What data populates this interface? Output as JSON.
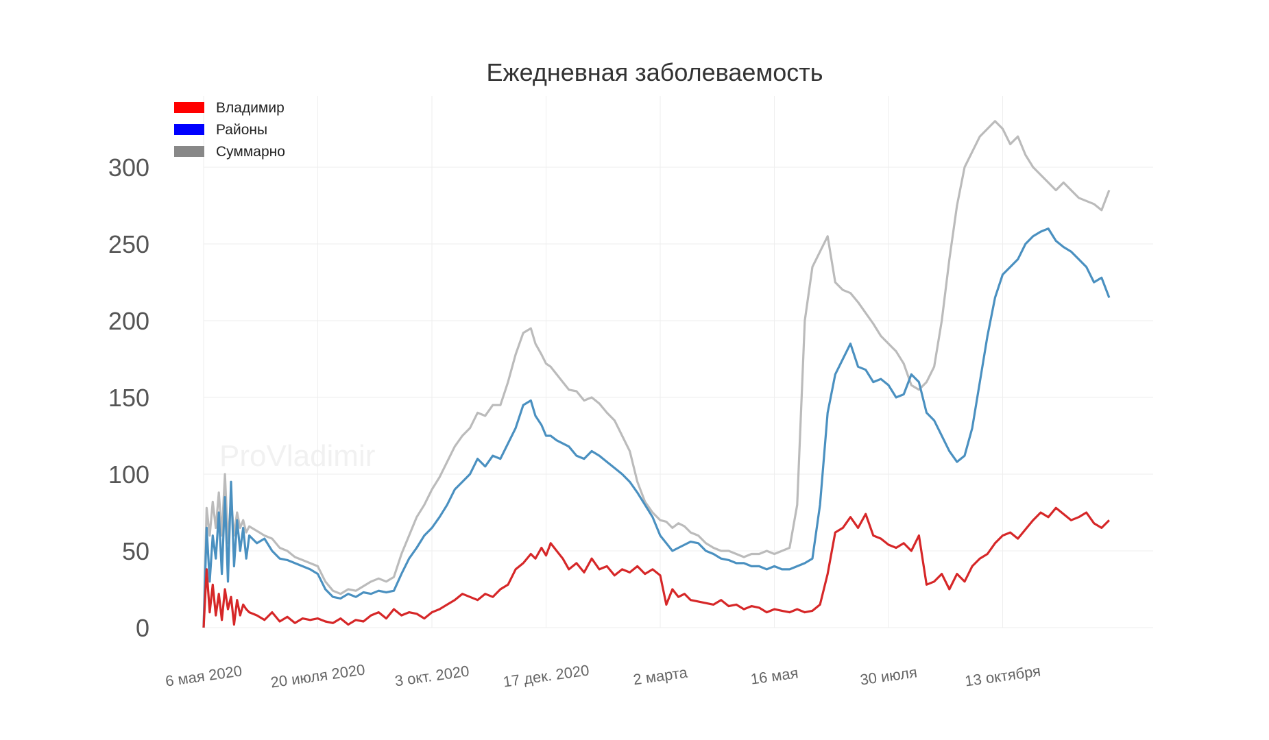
{
  "watermark": "ProVladimir",
  "chart_data": {
    "type": "line",
    "title": "Ежедневная заболеваемость",
    "xlabel": "",
    "ylabel": "",
    "ylim": [
      0,
      330
    ],
    "yticks": [
      0,
      50,
      100,
      150,
      200,
      250,
      300
    ],
    "x_tick_labels": [
      "6 мая 2020",
      "20 июля 2020",
      "3 окт. 2020",
      "17 дек. 2020",
      "2 марта",
      "16 мая",
      "30 июля",
      "13 октября"
    ],
    "x_tick_days": [
      0,
      75,
      150,
      225,
      300,
      375,
      450,
      525
    ],
    "x_range_days": [
      0,
      595
    ],
    "grid": true,
    "legend_position": "top-left",
    "series": [
      {
        "name": "Владимир",
        "color": "#d62728",
        "legend_color": "#ff0000",
        "x_days": [
          0,
          2,
          4,
          6,
          8,
          10,
          12,
          14,
          16,
          18,
          20,
          22,
          24,
          26,
          28,
          30,
          35,
          40,
          45,
          50,
          55,
          60,
          65,
          70,
          75,
          80,
          85,
          90,
          95,
          100,
          105,
          110,
          115,
          120,
          125,
          130,
          135,
          140,
          145,
          150,
          155,
          160,
          165,
          170,
          175,
          180,
          185,
          190,
          195,
          200,
          205,
          210,
          215,
          218,
          222,
          225,
          228,
          232,
          236,
          240,
          245,
          250,
          255,
          260,
          265,
          270,
          275,
          280,
          285,
          290,
          295,
          300,
          304,
          308,
          312,
          316,
          320,
          325,
          330,
          335,
          340,
          345,
          350,
          355,
          360,
          365,
          370,
          375,
          380,
          385,
          390,
          395,
          400,
          405,
          410,
          415,
          420,
          425,
          430,
          435,
          440,
          445,
          450,
          455,
          460,
          465,
          470,
          475,
          480,
          485,
          490,
          495,
          500,
          505,
          510,
          515,
          520,
          525,
          530,
          535,
          540,
          545,
          550,
          555,
          560,
          565,
          570,
          575,
          580,
          585,
          590,
          595
        ],
        "values": [
          0,
          38,
          10,
          28,
          8,
          22,
          5,
          25,
          12,
          20,
          2,
          18,
          8,
          15,
          12,
          10,
          8,
          5,
          10,
          4,
          7,
          3,
          6,
          5,
          6,
          4,
          3,
          6,
          2,
          5,
          4,
          8,
          10,
          6,
          12,
          8,
          10,
          9,
          6,
          10,
          12,
          15,
          18,
          22,
          20,
          18,
          22,
          20,
          25,
          28,
          38,
          42,
          48,
          45,
          52,
          47,
          55,
          50,
          45,
          38,
          42,
          36,
          45,
          38,
          40,
          34,
          38,
          36,
          40,
          35,
          38,
          34,
          15,
          25,
          20,
          22,
          18,
          17,
          16,
          15,
          18,
          14,
          15,
          12,
          14,
          13,
          10,
          12,
          11,
          10,
          12,
          10,
          11,
          15,
          35,
          62,
          65,
          72,
          65,
          74,
          60,
          58,
          54,
          52,
          55,
          50,
          60,
          28,
          30,
          35,
          25,
          35,
          30,
          40,
          45,
          48,
          55,
          60,
          62,
          58,
          64,
          70,
          75,
          72,
          78,
          74,
          70,
          72,
          75,
          68,
          65,
          70
        ]
      },
      {
        "name": "Районы",
        "color": "#4a90c0",
        "legend_color": "#0000ff",
        "x_days": [
          0,
          2,
          4,
          6,
          8,
          10,
          12,
          14,
          16,
          18,
          20,
          22,
          24,
          26,
          28,
          30,
          35,
          40,
          45,
          50,
          55,
          60,
          65,
          70,
          75,
          80,
          85,
          90,
          95,
          100,
          105,
          110,
          115,
          120,
          125,
          130,
          135,
          140,
          145,
          150,
          155,
          160,
          165,
          170,
          175,
          180,
          185,
          190,
          195,
          200,
          205,
          210,
          215,
          218,
          222,
          225,
          228,
          232,
          236,
          240,
          245,
          250,
          255,
          260,
          265,
          270,
          275,
          280,
          285,
          290,
          295,
          300,
          304,
          308,
          312,
          316,
          320,
          325,
          330,
          335,
          340,
          345,
          350,
          355,
          360,
          365,
          370,
          375,
          380,
          385,
          390,
          395,
          400,
          405,
          410,
          415,
          420,
          425,
          430,
          435,
          440,
          445,
          450,
          455,
          460,
          465,
          470,
          475,
          480,
          485,
          490,
          495,
          500,
          505,
          510,
          515,
          520,
          525,
          530,
          535,
          540,
          545,
          550,
          555,
          560,
          565,
          570,
          575,
          580,
          585,
          590,
          595
        ],
        "values": [
          0,
          65,
          30,
          60,
          45,
          75,
          35,
          85,
          30,
          95,
          40,
          70,
          50,
          65,
          45,
          60,
          55,
          58,
          50,
          45,
          44,
          42,
          40,
          38,
          35,
          25,
          20,
          19,
          22,
          20,
          23,
          22,
          24,
          23,
          24,
          35,
          45,
          52,
          60,
          65,
          72,
          80,
          90,
          95,
          100,
          110,
          105,
          112,
          110,
          120,
          130,
          145,
          148,
          138,
          132,
          125,
          125,
          122,
          120,
          118,
          112,
          110,
          115,
          112,
          108,
          104,
          100,
          95,
          88,
          80,
          72,
          60,
          55,
          50,
          52,
          54,
          56,
          55,
          50,
          48,
          45,
          44,
          42,
          42,
          40,
          40,
          38,
          40,
          38,
          38,
          40,
          42,
          45,
          80,
          140,
          165,
          175,
          185,
          170,
          168,
          160,
          162,
          158,
          150,
          152,
          165,
          160,
          140,
          135,
          125,
          115,
          108,
          112,
          130,
          160,
          190,
          215,
          230,
          235,
          240,
          250,
          255,
          258,
          260,
          252,
          248,
          245,
          240,
          235,
          225,
          228,
          215
        ]
      },
      {
        "name": "Суммарно",
        "color": "#bbbbbb",
        "legend_color": "#888888",
        "x_days": [
          0,
          2,
          4,
          6,
          8,
          10,
          12,
          14,
          16,
          18,
          20,
          22,
          24,
          26,
          28,
          30,
          35,
          40,
          45,
          50,
          55,
          60,
          65,
          70,
          75,
          80,
          85,
          90,
          95,
          100,
          105,
          110,
          115,
          120,
          125,
          130,
          135,
          140,
          145,
          150,
          155,
          160,
          165,
          170,
          175,
          180,
          185,
          190,
          195,
          200,
          205,
          210,
          215,
          218,
          222,
          225,
          228,
          232,
          236,
          240,
          245,
          250,
          255,
          260,
          265,
          270,
          275,
          280,
          285,
          290,
          295,
          300,
          304,
          308,
          312,
          316,
          320,
          325,
          330,
          335,
          340,
          345,
          350,
          355,
          360,
          365,
          370,
          375,
          380,
          385,
          390,
          395,
          400,
          405,
          410,
          415,
          420,
          425,
          430,
          435,
          440,
          445,
          450,
          455,
          460,
          465,
          470,
          475,
          480,
          485,
          490,
          495,
          500,
          505,
          510,
          515,
          520,
          525,
          530,
          535,
          540,
          545,
          550,
          555,
          560,
          565,
          570,
          575,
          580,
          585,
          590,
          595
        ],
        "values": [
          0,
          78,
          60,
          82,
          65,
          88,
          60,
          100,
          55,
          85,
          60,
          75,
          65,
          70,
          62,
          66,
          63,
          60,
          58,
          52,
          50,
          46,
          44,
          42,
          40,
          30,
          24,
          22,
          25,
          24,
          27,
          30,
          32,
          30,
          33,
          48,
          60,
          72,
          80,
          90,
          98,
          108,
          118,
          125,
          130,
          140,
          138,
          145,
          145,
          160,
          178,
          192,
          195,
          185,
          178,
          172,
          170,
          165,
          160,
          155,
          154,
          148,
          150,
          146,
          140,
          135,
          125,
          115,
          95,
          82,
          75,
          70,
          69,
          65,
          68,
          66,
          62,
          60,
          55,
          52,
          50,
          50,
          48,
          46,
          48,
          48,
          50,
          48,
          50,
          52,
          80,
          200,
          235,
          245,
          255,
          225,
          220,
          218,
          212,
          205,
          198,
          190,
          185,
          180,
          172,
          158,
          155,
          160,
          170,
          200,
          240,
          275,
          300,
          310,
          320,
          325,
          330,
          325,
          315,
          320,
          308,
          300,
          295,
          290,
          285,
          290,
          285,
          280,
          278,
          276,
          272,
          285
        ]
      }
    ]
  }
}
